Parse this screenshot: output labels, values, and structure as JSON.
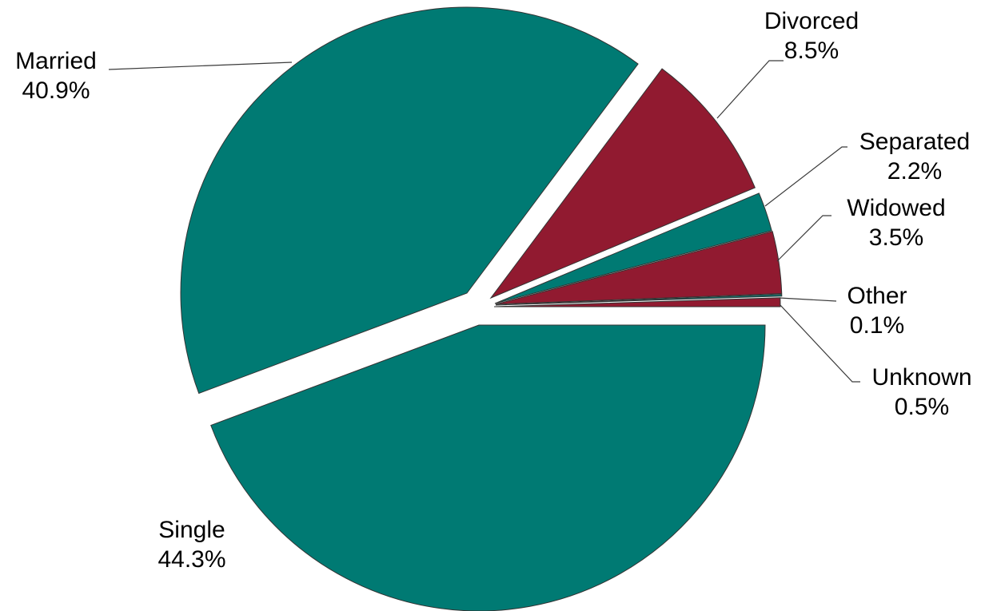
{
  "chart_data": {
    "type": "pie",
    "title": "",
    "start": "3 o'clock",
    "direction": "counterclockwise",
    "exploded": true,
    "colors": {
      "teal": "#007A73",
      "maroon": "#911A30"
    },
    "slices": [
      {
        "label": "Unknown",
        "value": 0.5,
        "display": "0.5%",
        "color": "#911A30"
      },
      {
        "label": "Other",
        "value": 0.1,
        "display": "0.1%",
        "color": "#007A73"
      },
      {
        "label": "Widowed",
        "value": 3.5,
        "display": "3.5%",
        "color": "#911A30"
      },
      {
        "label": "Separated",
        "value": 2.2,
        "display": "2.2%",
        "color": "#007A73"
      },
      {
        "label": "Divorced",
        "value": 8.5,
        "display": "8.5%",
        "color": "#911A30"
      },
      {
        "label": "Married",
        "value": 40.9,
        "display": "40.9%",
        "color": "#007A73"
      },
      {
        "label": "Single",
        "value": 44.3,
        "display": "44.3%",
        "color": "#007A73"
      }
    ]
  }
}
